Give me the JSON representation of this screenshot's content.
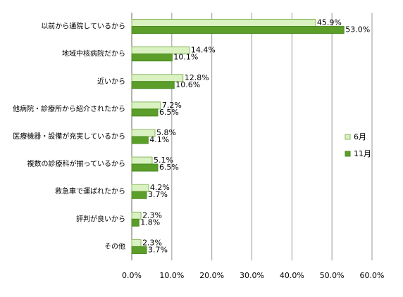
{
  "chart_data": {
    "type": "hbar",
    "categories": [
      "以前から通院しているから",
      "地域中核病院だから",
      "近いから",
      "他病院・診療所から紹介されたから",
      "医療機器・設備が充実しているから",
      "複数の診療科が揃っているから",
      "救急車で運ばれたから",
      "評判が良いから",
      "その他"
    ],
    "series": [
      {
        "name": "6月",
        "color": "#daf2c2",
        "border": "#8cb860",
        "values": [
          45.9,
          14.4,
          12.8,
          7.2,
          5.8,
          5.1,
          4.2,
          2.3,
          2.3
        ],
        "value_labels": [
          "45.9%",
          "14.4%",
          "12.8%",
          "7.2%",
          "5.8%",
          "5.1%",
          "4.2%",
          "2.3%",
          "2.3%"
        ]
      },
      {
        "name": "11月",
        "color": "#5c9e2a",
        "border": "#4a8a1e",
        "values": [
          53.0,
          10.1,
          10.6,
          6.5,
          4.1,
          6.5,
          3.7,
          1.8,
          3.7
        ],
        "value_labels": [
          "53.0%",
          "10.1%",
          "10.6%",
          "6.5%",
          "4.1%",
          "6.5%",
          "3.7%",
          "1.8%",
          "3.7%"
        ]
      }
    ],
    "xlim": [
      0,
      60
    ],
    "xticks": [
      {
        "value": 0,
        "label": "0.0%"
      },
      {
        "value": 10,
        "label": "10.0%"
      },
      {
        "value": 20,
        "label": "20.0%"
      },
      {
        "value": 30,
        "label": "30.0%"
      },
      {
        "value": 40,
        "label": "40.0%"
      },
      {
        "value": 50,
        "label": "50.0%"
      },
      {
        "value": 60,
        "label": "60.0%"
      }
    ],
    "grid": true
  }
}
